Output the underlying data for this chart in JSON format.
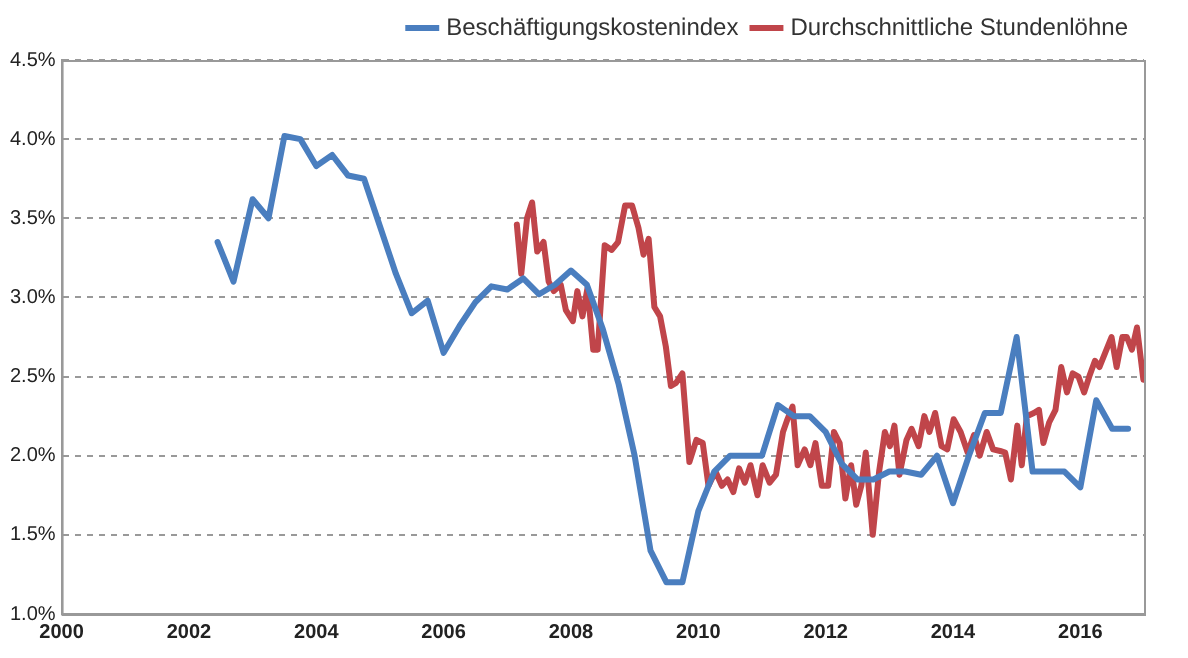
{
  "chart_data": {
    "type": "line",
    "xlim": [
      2000,
      2017
    ],
    "xticks": [
      2000,
      2002,
      2004,
      2006,
      2008,
      2010,
      2012,
      2014,
      2016
    ],
    "ylim": [
      1.0,
      4.5
    ],
    "yticks": [
      {
        "value": 1.0,
        "label": "1.0%"
      },
      {
        "value": 1.5,
        "label": "1.5%"
      },
      {
        "value": 2.0,
        "label": "2.0%"
      },
      {
        "value": 2.5,
        "label": "2.5%"
      },
      {
        "value": 3.0,
        "label": "3.0%"
      },
      {
        "value": 3.5,
        "label": "3.5%"
      },
      {
        "value": 4.0,
        "label": "4.0%"
      },
      {
        "value": 4.5,
        "label": "4.5%"
      }
    ],
    "grid": "y",
    "legend": "top",
    "marker": "none",
    "line_style": "solid",
    "series": [
      {
        "name": "Beschäftigungskostenindex",
        "color": "#4a7ebf",
        "x": [
          2002.45,
          2002.7,
          2003.0,
          2003.25,
          2003.5,
          2003.75,
          2004.0,
          2004.25,
          2004.5,
          2004.75,
          2005.0,
          2005.25,
          2005.5,
          2005.75,
          2006.0,
          2006.25,
          2006.5,
          2006.75,
          2007.0,
          2007.25,
          2007.5,
          2007.75,
          2008.0,
          2008.25,
          2008.5,
          2008.75,
          2009.0,
          2009.25,
          2009.5,
          2009.75,
          2010.0,
          2010.25,
          2010.5,
          2010.75,
          2011.0,
          2011.25,
          2011.5,
          2011.75,
          2012.0,
          2012.25,
          2012.5,
          2012.75,
          2013.0,
          2013.25,
          2013.5,
          2013.75,
          2014.0,
          2014.25,
          2014.5,
          2014.75,
          2015.0,
          2015.25,
          2015.5,
          2015.75,
          2016.0,
          2016.25,
          2016.5,
          2016.75
        ],
        "values": [
          3.35,
          3.1,
          3.62,
          3.5,
          4.02,
          4.0,
          3.83,
          3.9,
          3.77,
          3.75,
          3.45,
          3.15,
          2.9,
          2.98,
          2.65,
          2.82,
          2.97,
          3.07,
          3.05,
          3.12,
          3.02,
          3.08,
          3.17,
          3.08,
          2.8,
          2.45,
          2.0,
          1.4,
          1.2,
          1.2,
          1.65,
          1.9,
          2.0,
          2.0,
          2.0,
          2.32,
          2.25,
          2.25,
          2.15,
          1.95,
          1.85,
          1.85,
          1.9,
          1.9,
          1.88,
          2.0,
          1.7,
          2.0,
          2.27,
          2.27,
          2.75,
          1.9,
          1.9,
          1.9,
          1.8,
          2.35,
          2.17,
          2.17
        ]
      },
      {
        "name": "Durchschnittliche Stundenlöhne",
        "color": "#c0454a",
        "x": [
          2007.15,
          2007.22,
          2007.31,
          2007.39,
          2007.47,
          2007.57,
          2007.65,
          2007.73,
          2007.84,
          2007.92,
          2008.03,
          2008.1,
          2008.18,
          2008.26,
          2008.35,
          2008.42,
          2008.53,
          2008.64,
          2008.74,
          2008.85,
          2008.96,
          2009.06,
          2009.14,
          2009.22,
          2009.31,
          2009.4,
          2009.49,
          2009.57,
          2009.65,
          2009.75,
          2009.86,
          2009.97,
          2010.07,
          2010.16,
          2010.27,
          2010.37,
          2010.46,
          2010.55,
          2010.64,
          2010.73,
          2010.82,
          2010.93,
          2011.01,
          2011.12,
          2011.22,
          2011.33,
          2011.4,
          2011.48,
          2011.56,
          2011.67,
          2011.76,
          2011.84,
          2011.94,
          2012.04,
          2012.13,
          2012.22,
          2012.31,
          2012.4,
          2012.48,
          2012.56,
          2012.63,
          2012.74,
          2012.84,
          2012.93,
          2013.01,
          2013.08,
          2013.16,
          2013.27,
          2013.35,
          2013.46,
          2013.55,
          2013.63,
          2013.72,
          2013.82,
          2013.91,
          2014.01,
          2014.12,
          2014.23,
          2014.33,
          2014.42,
          2014.53,
          2014.63,
          2014.74,
          2014.82,
          2014.91,
          2015.01,
          2015.08,
          2015.16,
          2015.27,
          2015.35,
          2015.42,
          2015.51,
          2015.61,
          2015.7,
          2015.79,
          2015.88,
          2015.97,
          2016.06,
          2016.14,
          2016.23,
          2016.3,
          2016.39,
          2016.49,
          2016.57,
          2016.66,
          2016.73,
          2016.81,
          2016.89,
          2016.99
        ],
        "values": [
          3.46,
          3.15,
          3.5,
          3.6,
          3.29,
          3.35,
          3.1,
          3.04,
          3.08,
          2.92,
          2.85,
          3.04,
          2.88,
          3.06,
          2.67,
          2.67,
          3.33,
          3.3,
          3.35,
          3.58,
          3.58,
          3.44,
          3.27,
          3.37,
          2.94,
          2.88,
          2.69,
          2.44,
          2.46,
          2.52,
          1.96,
          2.1,
          2.08,
          1.81,
          1.9,
          1.81,
          1.85,
          1.77,
          1.92,
          1.83,
          1.94,
          1.75,
          1.94,
          1.83,
          1.88,
          2.15,
          2.23,
          2.31,
          1.94,
          2.04,
          1.94,
          2.08,
          1.81,
          1.81,
          2.15,
          2.08,
          1.73,
          1.94,
          1.69,
          1.81,
          2.02,
          1.5,
          1.9,
          2.15,
          2.06,
          2.19,
          1.88,
          2.1,
          2.17,
          2.06,
          2.25,
          2.15,
          2.27,
          2.06,
          2.04,
          2.23,
          2.15,
          2.02,
          2.13,
          2.0,
          2.15,
          2.04,
          2.03,
          2.02,
          1.85,
          2.19,
          1.94,
          2.25,
          2.27,
          2.29,
          2.08,
          2.21,
          2.29,
          2.56,
          2.4,
          2.52,
          2.5,
          2.4,
          2.5,
          2.6,
          2.56,
          2.65,
          2.75,
          2.56,
          2.75,
          2.75,
          2.67,
          2.81,
          2.48
        ]
      }
    ]
  }
}
